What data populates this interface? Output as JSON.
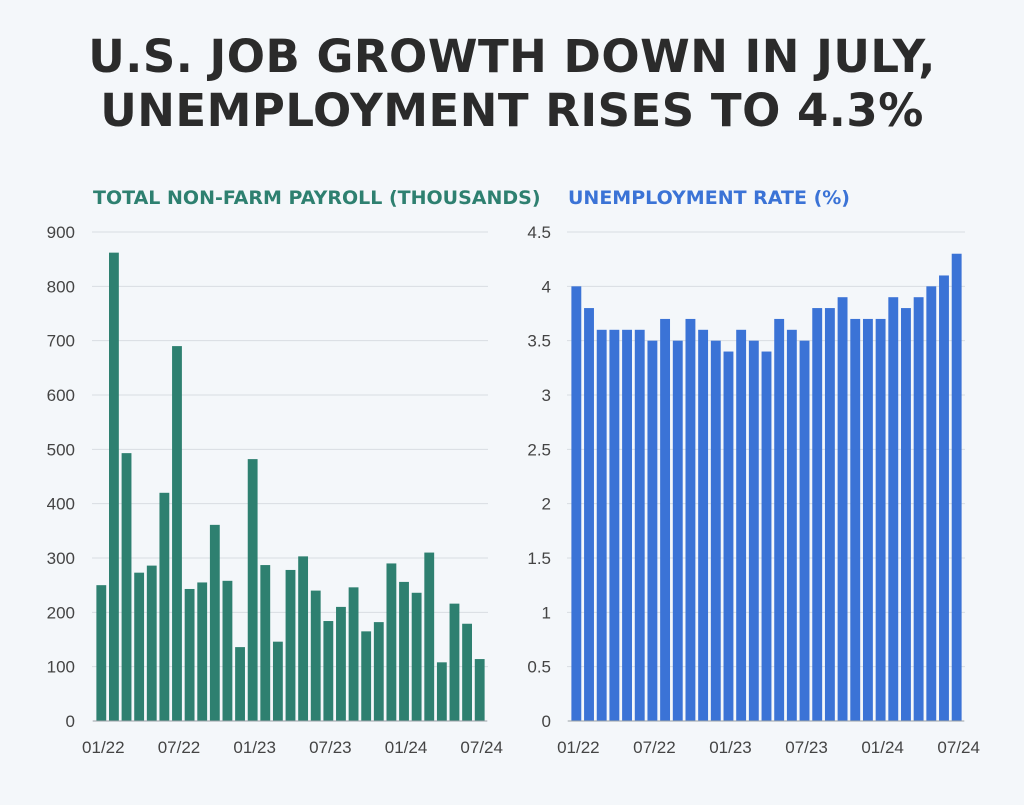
{
  "title_line1": "U.S. JOB GROWTH DOWN IN JULY,",
  "title_line2": "UNEMPLOYMENT RISES TO 4.3%",
  "colors": {
    "payroll": "#2e8070",
    "unemployment": "#3b73d6",
    "title": "#2b2b2b",
    "grid": "#d8dde2"
  },
  "chart_data": [
    {
      "type": "bar",
      "title": "TOTAL NON-FARM PAYROLL (THOUSANDS)",
      "categories": [
        "01/22",
        "02/22",
        "03/22",
        "04/22",
        "05/22",
        "06/22",
        "07/22",
        "08/22",
        "09/22",
        "10/22",
        "11/22",
        "12/22",
        "01/23",
        "02/23",
        "03/23",
        "04/23",
        "05/23",
        "06/23",
        "07/23",
        "08/23",
        "09/23",
        "10/23",
        "11/23",
        "12/23",
        "01/24",
        "02/24",
        "03/24",
        "04/24",
        "05/24",
        "06/24",
        "07/24"
      ],
      "values": [
        250,
        862,
        493,
        273,
        286,
        420,
        690,
        243,
        255,
        361,
        258,
        136,
        482,
        287,
        146,
        278,
        303,
        240,
        184,
        210,
        246,
        165,
        182,
        290,
        256,
        236,
        310,
        108,
        216,
        179,
        114
      ],
      "x_tick_labels": [
        "01/22",
        "07/22",
        "01/23",
        "07/23",
        "01/24",
        "07/24"
      ],
      "y_ticks": [
        0,
        100,
        200,
        300,
        400,
        500,
        600,
        700,
        800,
        900
      ],
      "ylim": [
        0,
        900
      ],
      "grid": true,
      "xlabel": "",
      "ylabel": ""
    },
    {
      "type": "bar",
      "title": "UNEMPLOYMENT RATE (%)",
      "categories": [
        "01/22",
        "02/22",
        "03/22",
        "04/22",
        "05/22",
        "06/22",
        "07/22",
        "08/22",
        "09/22",
        "10/22",
        "11/22",
        "12/22",
        "01/23",
        "02/23",
        "03/23",
        "04/23",
        "05/23",
        "06/23",
        "07/23",
        "08/23",
        "09/23",
        "10/23",
        "11/23",
        "12/23",
        "01/24",
        "02/24",
        "03/24",
        "04/24",
        "05/24",
        "06/24",
        "07/24"
      ],
      "values": [
        4.0,
        3.8,
        3.6,
        3.6,
        3.6,
        3.6,
        3.5,
        3.7,
        3.5,
        3.7,
        3.6,
        3.5,
        3.4,
        3.6,
        3.5,
        3.4,
        3.7,
        3.6,
        3.5,
        3.8,
        3.8,
        3.9,
        3.7,
        3.7,
        3.7,
        3.9,
        3.8,
        3.9,
        4.0,
        4.1,
        4.3
      ],
      "x_tick_labels": [
        "01/22",
        "07/22",
        "01/23",
        "07/23",
        "01/24",
        "07/24"
      ],
      "y_ticks": [
        "0",
        "0.5",
        "1",
        "1.5",
        "2",
        "2.5",
        "3",
        "3.5",
        "4",
        "4.5"
      ],
      "ylim": [
        0,
        4.5
      ],
      "grid": true,
      "xlabel": "",
      "ylabel": ""
    }
  ]
}
